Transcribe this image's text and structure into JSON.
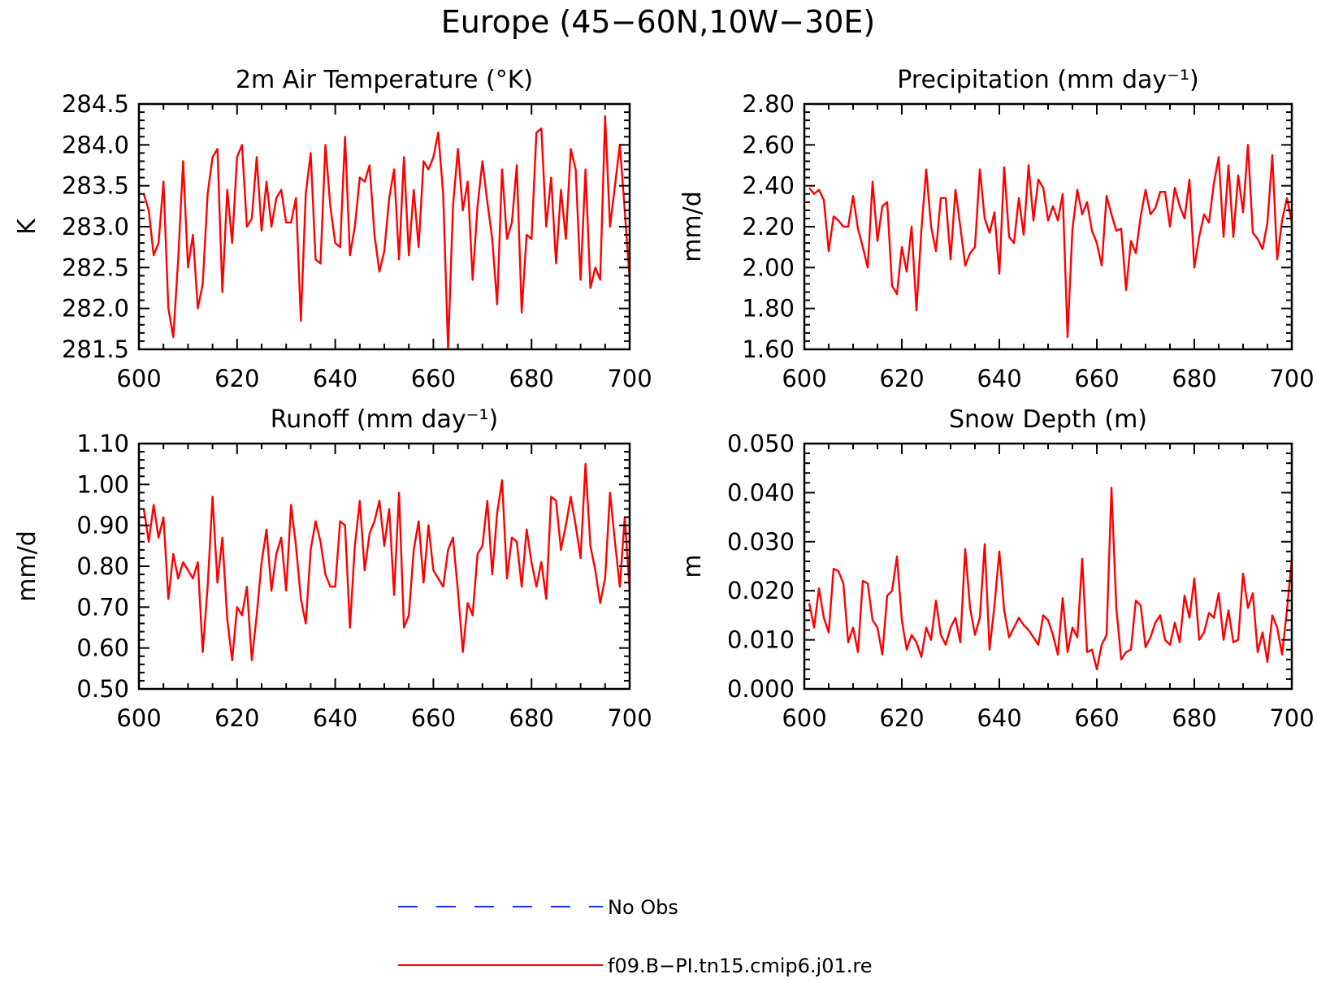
{
  "figure": {
    "title": "Europe (45−60N,10W−30E)"
  },
  "legend": {
    "entries": [
      {
        "label": "No Obs",
        "color": "#1a2cff",
        "style": "dashed"
      },
      {
        "label": "f09.B−PI.tn15.cmip6.j01.re",
        "color": "#ff0000",
        "style": "solid"
      }
    ]
  },
  "chart_data": [
    {
      "type": "line",
      "title": "2m Air Temperature (°K)",
      "xlabel": "",
      "ylabel": "K",
      "xlim": [
        600,
        700
      ],
      "ylim": [
        281.5,
        284.5
      ],
      "xticks": [
        "600",
        "620",
        "640",
        "660",
        "680",
        "700"
      ],
      "yticks": [
        "281.5",
        "282.0",
        "282.5",
        "283.0",
        "283.5",
        "284.0",
        "284.5"
      ],
      "series": [
        {
          "color": "#ff0000",
          "x": [
            601,
            602,
            603,
            604,
            605,
            606,
            607,
            608,
            609,
            610,
            611,
            612,
            613,
            614,
            615,
            616,
            617,
            618,
            619,
            620,
            621,
            622,
            623,
            624,
            625,
            626,
            627,
            628,
            629,
            630,
            631,
            632,
            633,
            634,
            635,
            636,
            637,
            638,
            639,
            640,
            641,
            642,
            643,
            644,
            645,
            646,
            647,
            648,
            649,
            650,
            651,
            652,
            653,
            654,
            655,
            656,
            657,
            658,
            659,
            660,
            661,
            662,
            663,
            664,
            665,
            666,
            667,
            668,
            669,
            670,
            671,
            672,
            673,
            674,
            675,
            676,
            677,
            678,
            679,
            680,
            681,
            682,
            683,
            684,
            685,
            686,
            687,
            688,
            689,
            690,
            691,
            692,
            693,
            694,
            695,
            696,
            697,
            698,
            699,
            700
          ],
          "y": [
            283.4,
            283.2,
            282.65,
            282.8,
            283.55,
            282.0,
            281.65,
            282.6,
            283.8,
            282.5,
            282.9,
            282.0,
            282.3,
            283.4,
            283.85,
            283.95,
            282.2,
            283.45,
            282.8,
            283.85,
            284.0,
            283.0,
            283.1,
            283.85,
            282.95,
            283.55,
            283.0,
            283.35,
            283.45,
            283.05,
            283.05,
            283.35,
            281.85,
            283.4,
            283.9,
            282.6,
            282.55,
            284.0,
            283.25,
            282.8,
            282.75,
            284.1,
            282.65,
            283.0,
            283.6,
            283.55,
            283.75,
            282.9,
            282.45,
            282.7,
            283.35,
            283.7,
            282.6,
            283.85,
            282.65,
            283.45,
            282.75,
            283.8,
            283.7,
            283.85,
            284.15,
            283.4,
            281.5,
            283.25,
            283.95,
            283.2,
            283.55,
            282.35,
            283.25,
            283.8,
            283.3,
            282.85,
            282.05,
            283.7,
            282.85,
            283.05,
            283.75,
            281.95,
            282.9,
            282.85,
            284.15,
            284.2,
            283.0,
            283.6,
            282.55,
            283.45,
            282.85,
            283.95,
            283.7,
            282.35,
            283.7,
            282.25,
            282.5,
            282.35,
            284.35,
            283.0,
            283.5,
            284.0,
            283.2,
            282.35
          ]
        }
      ]
    },
    {
      "type": "line",
      "title": "Precipitation (mm day⁻¹)",
      "xlabel": "",
      "ylabel": "mm/d",
      "xlim": [
        600,
        700
      ],
      "ylim": [
        1.6,
        2.8
      ],
      "xticks": [
        "600",
        "620",
        "640",
        "660",
        "680",
        "700"
      ],
      "yticks": [
        "1.60",
        "1.80",
        "2.00",
        "2.20",
        "2.40",
        "2.60",
        "2.80"
      ],
      "series": [
        {
          "color": "#ff0000",
          "x": [
            601,
            602,
            603,
            604,
            605,
            606,
            607,
            608,
            609,
            610,
            611,
            612,
            613,
            614,
            615,
            616,
            617,
            618,
            619,
            620,
            621,
            622,
            623,
            624,
            625,
            626,
            627,
            628,
            629,
            630,
            631,
            632,
            633,
            634,
            635,
            636,
            637,
            638,
            639,
            640,
            641,
            642,
            643,
            644,
            645,
            646,
            647,
            648,
            649,
            650,
            651,
            652,
            653,
            654,
            655,
            656,
            657,
            658,
            659,
            660,
            661,
            662,
            663,
            664,
            665,
            666,
            667,
            668,
            669,
            670,
            671,
            672,
            673,
            674,
            675,
            676,
            677,
            678,
            679,
            680,
            681,
            682,
            683,
            684,
            685,
            686,
            687,
            688,
            689,
            690,
            691,
            692,
            693,
            694,
            695,
            696,
            697,
            698,
            699,
            700
          ],
          "y": [
            2.39,
            2.36,
            2.38,
            2.33,
            2.08,
            2.25,
            2.23,
            2.2,
            2.2,
            2.35,
            2.19,
            2.1,
            2.0,
            2.42,
            2.13,
            2.3,
            2.32,
            1.91,
            1.87,
            2.1,
            1.98,
            2.2,
            1.79,
            2.18,
            2.48,
            2.2,
            2.08,
            2.34,
            2.34,
            2.04,
            2.38,
            2.2,
            2.01,
            2.07,
            2.1,
            2.48,
            2.24,
            2.17,
            2.27,
            1.97,
            2.49,
            2.15,
            2.12,
            2.34,
            2.16,
            2.5,
            2.23,
            2.43,
            2.39,
            2.23,
            2.3,
            2.23,
            2.36,
            1.66,
            2.19,
            2.38,
            2.26,
            2.32,
            2.18,
            2.12,
            2.01,
            2.35,
            2.26,
            2.18,
            2.19,
            1.89,
            2.13,
            2.07,
            2.25,
            2.38,
            2.26,
            2.29,
            2.37,
            2.37,
            2.2,
            2.39,
            2.3,
            2.24,
            2.43,
            2.0,
            2.15,
            2.26,
            2.22,
            2.41,
            2.54,
            2.15,
            2.5,
            2.15,
            2.45,
            2.27,
            2.6,
            2.17,
            2.14,
            2.09,
            2.22,
            2.55,
            2.04,
            2.23,
            2.34,
            2.22
          ]
        }
      ]
    },
    {
      "type": "line",
      "title": "Runoff (mm day⁻¹)",
      "xlabel": "",
      "ylabel": "mm/d",
      "xlim": [
        600,
        700
      ],
      "ylim": [
        0.5,
        1.1
      ],
      "xticks": [
        "600",
        "620",
        "640",
        "660",
        "680",
        "700"
      ],
      "yticks": [
        "0.50",
        "0.60",
        "0.70",
        "0.80",
        "0.90",
        "1.00",
        "1.10"
      ],
      "series": [
        {
          "color": "#ff0000",
          "x": [
            601,
            602,
            603,
            604,
            605,
            606,
            607,
            608,
            609,
            610,
            611,
            612,
            613,
            614,
            615,
            616,
            617,
            618,
            619,
            620,
            621,
            622,
            623,
            624,
            625,
            626,
            627,
            628,
            629,
            630,
            631,
            632,
            633,
            634,
            635,
            636,
            637,
            638,
            639,
            640,
            641,
            642,
            643,
            644,
            645,
            646,
            647,
            648,
            649,
            650,
            651,
            652,
            653,
            654,
            655,
            656,
            657,
            658,
            659,
            660,
            661,
            662,
            663,
            664,
            665,
            666,
            667,
            668,
            669,
            670,
            671,
            672,
            673,
            674,
            675,
            676,
            677,
            678,
            679,
            680,
            681,
            682,
            683,
            684,
            685,
            686,
            687,
            688,
            689,
            690,
            691,
            692,
            693,
            694,
            695,
            696,
            697,
            698,
            699,
            700
          ],
          "y": [
            0.94,
            0.86,
            0.95,
            0.87,
            0.92,
            0.72,
            0.83,
            0.77,
            0.81,
            0.79,
            0.77,
            0.81,
            0.59,
            0.75,
            0.97,
            0.76,
            0.87,
            0.67,
            0.57,
            0.7,
            0.68,
            0.75,
            0.57,
            0.68,
            0.81,
            0.89,
            0.74,
            0.83,
            0.87,
            0.74,
            0.95,
            0.85,
            0.72,
            0.66,
            0.84,
            0.91,
            0.86,
            0.78,
            0.75,
            0.75,
            0.91,
            0.9,
            0.65,
            0.85,
            0.96,
            0.79,
            0.88,
            0.91,
            0.96,
            0.85,
            0.94,
            0.73,
            0.98,
            0.65,
            0.68,
            0.84,
            0.91,
            0.76,
            0.9,
            0.79,
            0.77,
            0.75,
            0.84,
            0.87,
            0.74,
            0.59,
            0.71,
            0.68,
            0.83,
            0.85,
            0.96,
            0.78,
            0.93,
            1.01,
            0.77,
            0.87,
            0.86,
            0.75,
            0.89,
            0.81,
            0.75,
            0.81,
            0.72,
            0.97,
            0.96,
            0.84,
            0.9,
            0.97,
            0.9,
            0.82,
            1.05,
            0.85,
            0.79,
            0.71,
            0.77,
            0.98,
            0.86,
            0.75,
            0.92,
            0.74
          ]
        }
      ]
    },
    {
      "type": "line",
      "title": "Snow Depth (m)",
      "xlabel": "",
      "ylabel": "m",
      "xlim": [
        600,
        700
      ],
      "ylim": [
        0.0,
        0.05
      ],
      "xticks": [
        "600",
        "620",
        "640",
        "660",
        "680",
        "700"
      ],
      "yticks": [
        "0.000",
        "0.010",
        "0.020",
        "0.030",
        "0.040",
        "0.050"
      ],
      "series": [
        {
          "color": "#ff0000",
          "x": [
            601,
            602,
            603,
            604,
            605,
            606,
            607,
            608,
            609,
            610,
            611,
            612,
            613,
            614,
            615,
            616,
            617,
            618,
            619,
            620,
            621,
            622,
            623,
            624,
            625,
            626,
            627,
            628,
            629,
            630,
            631,
            632,
            633,
            634,
            635,
            636,
            637,
            638,
            639,
            640,
            641,
            642,
            643,
            644,
            645,
            646,
            647,
            648,
            649,
            650,
            651,
            652,
            653,
            654,
            655,
            656,
            657,
            658,
            659,
            660,
            661,
            662,
            663,
            664,
            665,
            666,
            667,
            668,
            669,
            670,
            671,
            672,
            673,
            674,
            675,
            676,
            677,
            678,
            679,
            680,
            681,
            682,
            683,
            684,
            685,
            686,
            687,
            688,
            689,
            690,
            691,
            692,
            693,
            694,
            695,
            696,
            697,
            698,
            699,
            700
          ],
          "y": [
            0.0175,
            0.0125,
            0.0205,
            0.0145,
            0.0115,
            0.0245,
            0.024,
            0.0215,
            0.0095,
            0.0125,
            0.0075,
            0.022,
            0.0215,
            0.014,
            0.0125,
            0.007,
            0.019,
            0.02,
            0.027,
            0.014,
            0.008,
            0.011,
            0.0095,
            0.0065,
            0.0125,
            0.01,
            0.018,
            0.011,
            0.009,
            0.0125,
            0.0145,
            0.0095,
            0.0285,
            0.0165,
            0.011,
            0.0145,
            0.0295,
            0.008,
            0.017,
            0.028,
            0.016,
            0.0105,
            0.0125,
            0.0145,
            0.013,
            0.012,
            0.0105,
            0.009,
            0.015,
            0.014,
            0.011,
            0.007,
            0.0185,
            0.0075,
            0.0125,
            0.0105,
            0.0265,
            0.0075,
            0.008,
            0.004,
            0.009,
            0.011,
            0.041,
            0.0165,
            0.006,
            0.0075,
            0.008,
            0.018,
            0.017,
            0.0085,
            0.0105,
            0.0135,
            0.015,
            0.01,
            0.009,
            0.0135,
            0.0095,
            0.019,
            0.0145,
            0.0225,
            0.01,
            0.0115,
            0.0155,
            0.0145,
            0.0195,
            0.01,
            0.016,
            0.0095,
            0.01,
            0.0235,
            0.0165,
            0.0195,
            0.0075,
            0.0115,
            0.0055,
            0.015,
            0.0125,
            0.007,
            0.016,
            0.0265
          ]
        }
      ]
    }
  ]
}
